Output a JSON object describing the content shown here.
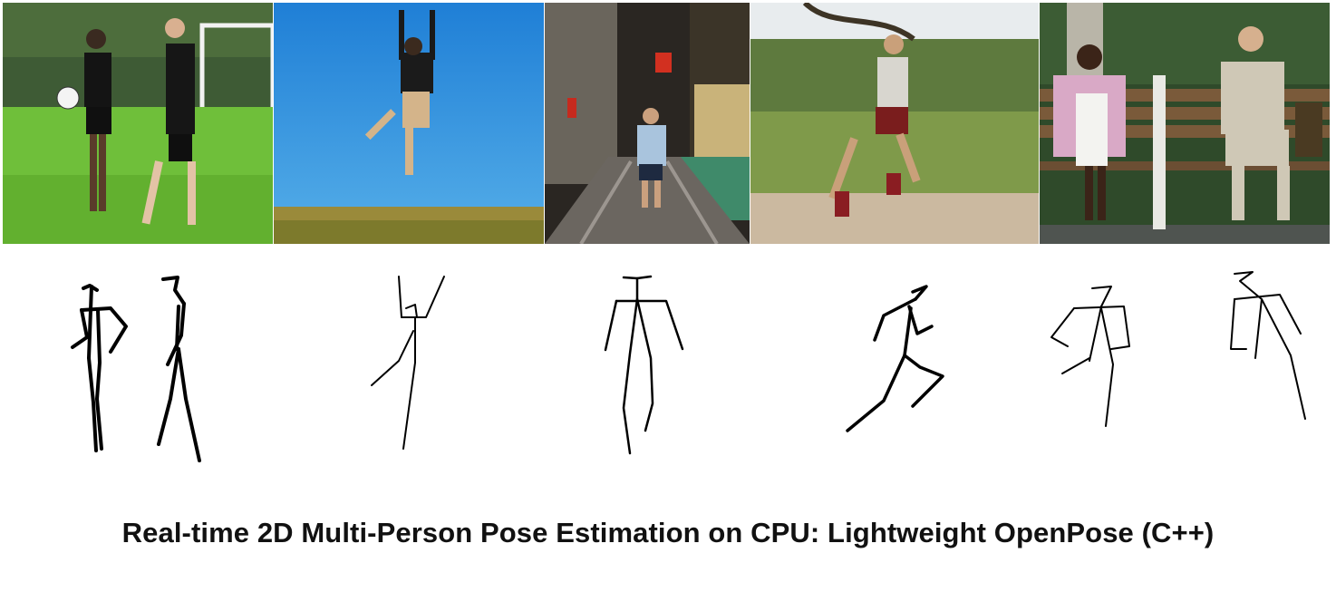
{
  "photos": [
    {
      "subject": "two footballers standing on a training pitch"
    },
    {
      "subject": "man jumping with arms raised against blue sky"
    },
    {
      "subject": "man standing on railway tracks in a narrow street"
    },
    {
      "subject": "boy running along a dirt path by a meadow"
    },
    {
      "subject": "woman and man sitting on a park bench"
    }
  ],
  "colors": {
    "skeleton": "#000000",
    "title": "#111111",
    "sky": "#2f8fd8",
    "grass": "#6fbf3a"
  },
  "title": "Real-time 2D Multi-Person Pose Estimation on CPU: Lightweight OpenPose (C++)"
}
